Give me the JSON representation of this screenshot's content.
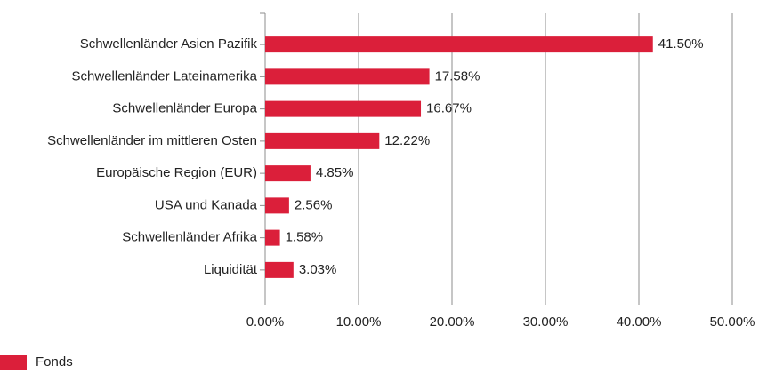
{
  "chart_data": {
    "type": "bar",
    "orientation": "horizontal",
    "categories": [
      "Schwellenländer Asien Pazifik",
      "Schwellenländer Lateinamerika",
      "Schwellenländer Europa",
      "Schwellenländer im mittleren Osten",
      "Europäische Region (EUR)",
      "USA und Kanada",
      "Schwellenländer Afrika",
      "Liquidität"
    ],
    "series": [
      {
        "name": "Fonds",
        "color": "#db1f3a",
        "values": [
          41.5,
          17.58,
          16.67,
          12.22,
          4.85,
          2.56,
          1.58,
          3.03
        ],
        "value_labels": [
          "41.50%",
          "17.58%",
          "16.67%",
          "12.22%",
          "4.85%",
          "2.56%",
          "1.58%",
          "3.03%"
        ]
      }
    ],
    "xlim": [
      0,
      50
    ],
    "xticks": [
      {
        "value": 0,
        "label": "0.00%"
      },
      {
        "value": 10,
        "label": "10.00%"
      },
      {
        "value": 20,
        "label": "20.00%"
      },
      {
        "value": 30,
        "label": "30.00%"
      },
      {
        "value": 40,
        "label": "40.00%"
      },
      {
        "value": 50,
        "label": "50.00%"
      }
    ],
    "grid": true,
    "legend": "bottom-left"
  }
}
